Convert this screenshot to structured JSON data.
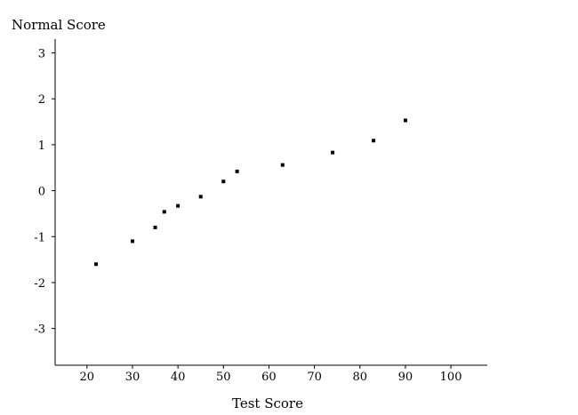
{
  "chart_data": {
    "type": "scatter",
    "title": "",
    "ylabel": "Normal Score",
    "xlabel": "Test Score",
    "xlim": [
      13,
      108
    ],
    "ylim": [
      -3.8,
      3.3
    ],
    "xticks": [
      20,
      30,
      40,
      50,
      60,
      70,
      80,
      90,
      100
    ],
    "xtick_labels": [
      "20",
      "30",
      "40",
      "50",
      "60",
      "70",
      "80",
      "90",
      "100"
    ],
    "yticks": [
      3,
      2,
      1,
      0,
      -1,
      -2,
      -3
    ],
    "ytick_labels": [
      "3",
      "2",
      "1",
      "0",
      "-1",
      "-2",
      "-3"
    ],
    "grid": false,
    "marker_color": "#000000",
    "points": [
      {
        "x": 22,
        "y": -1.6
      },
      {
        "x": 30,
        "y": -1.1
      },
      {
        "x": 35,
        "y": -0.8
      },
      {
        "x": 37,
        "y": -0.46
      },
      {
        "x": 40,
        "y": -0.33
      },
      {
        "x": 45,
        "y": -0.13
      },
      {
        "x": 50,
        "y": 0.2
      },
      {
        "x": 53,
        "y": 0.42
      },
      {
        "x": 63,
        "y": 0.56
      },
      {
        "x": 74,
        "y": 0.83
      },
      {
        "x": 83,
        "y": 1.09
      },
      {
        "x": 90,
        "y": 1.53
      }
    ]
  }
}
